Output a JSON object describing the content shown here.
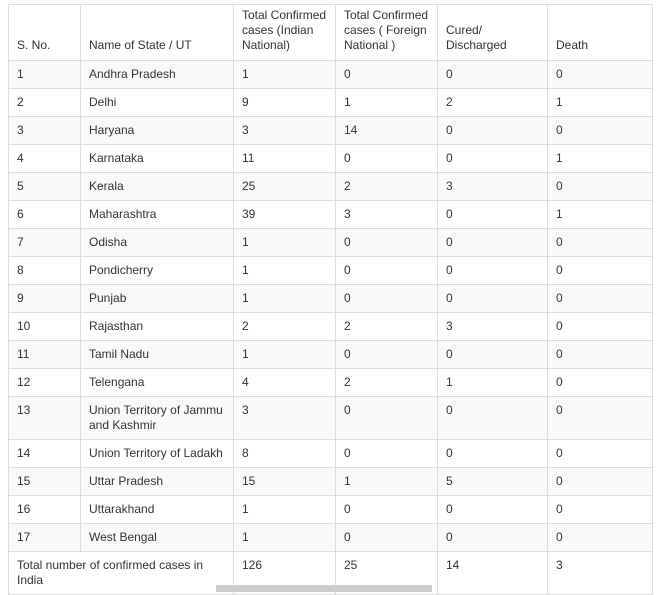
{
  "chart_data": {
    "type": "table",
    "columns": [
      "S. No.",
      "Name of State / UT",
      "Total Confirmed\ncases (Indian\nNational)",
      "Total Confirmed\ncases ( Foreign\nNational )",
      "Cured/\nDischarged",
      "Death"
    ],
    "rows": [
      [
        "1",
        "Andhra Pradesh",
        "1",
        "0",
        "0",
        "0"
      ],
      [
        "2",
        "Delhi",
        "9",
        "1",
        "2",
        "1"
      ],
      [
        "3",
        "Haryana",
        "3",
        "14",
        "0",
        "0"
      ],
      [
        "4",
        "Karnataka",
        "11",
        "0",
        "0",
        "1"
      ],
      [
        "5",
        "Kerala",
        "25",
        "2",
        "3",
        "0"
      ],
      [
        "6",
        "Maharashtra",
        "39",
        "3",
        "0",
        "1"
      ],
      [
        "7",
        "Odisha",
        "1",
        "0",
        "0",
        "0"
      ],
      [
        "8",
        "Pondicherry",
        "1",
        "0",
        "0",
        "0"
      ],
      [
        "9",
        "Punjab",
        "1",
        "0",
        "0",
        "0"
      ],
      [
        "10",
        "Rajasthan",
        "2",
        "2",
        "3",
        "0"
      ],
      [
        "11",
        "Tamil Nadu",
        "1",
        "0",
        "0",
        "0"
      ],
      [
        "12",
        "Telengana",
        "4",
        "2",
        "1",
        "0"
      ],
      [
        "13",
        "Union Territory of Jammu and Kashmir",
        "3",
        "0",
        "0",
        "0"
      ],
      [
        "14",
        "Union Territory of Ladakh",
        "8",
        "0",
        "0",
        "0"
      ],
      [
        "15",
        "Uttar Pradesh",
        "15",
        "1",
        "5",
        "0"
      ],
      [
        "16",
        "Uttarakhand",
        "1",
        "0",
        "0",
        "0"
      ],
      [
        "17",
        "West Bengal",
        "1",
        "0",
        "0",
        "0"
      ]
    ],
    "total_row": {
      "label": "Total number of confirmed cases in India",
      "values": [
        "126",
        "25",
        "14",
        "3"
      ]
    }
  },
  "ui": {
    "colors": {
      "border": "#dddddd",
      "text": "#333333",
      "row_stripe": "#f9f9f9",
      "scrollbar_thumb": "#cccccc"
    }
  }
}
